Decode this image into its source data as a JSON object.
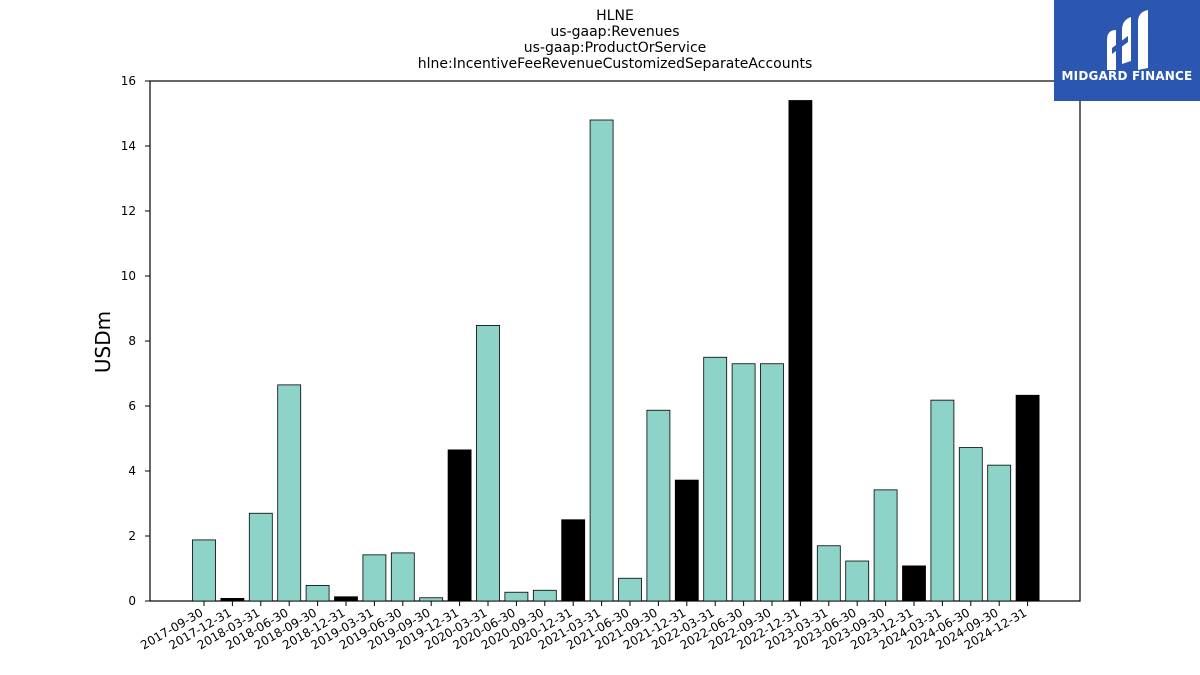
{
  "titles": [
    "HLNE",
    "us-gaap:Revenues",
    "us-gaap:ProductOrService",
    "hlne:IncentiveFeeRevenueCustomizedSeparateAccounts"
  ],
  "brand": {
    "name": "MIDGARD FINANCE",
    "background": "#2b57b0",
    "text_color": "#ffffff"
  },
  "chart_data": {
    "type": "bar",
    "title": "HLNE",
    "subtitles": [
      "us-gaap:Revenues",
      "us-gaap:ProductOrService",
      "hlne:IncentiveFeeRevenueCustomizedSeparateAccounts"
    ],
    "xlabel": "",
    "ylabel": "USDm",
    "ylim": [
      0,
      16
    ],
    "yticks": [
      0,
      2,
      4,
      6,
      8,
      10,
      12,
      14,
      16
    ],
    "grid": false,
    "colors": {
      "quarter": "#8dd3c7",
      "year_end": "#000000",
      "edge": "#000000"
    },
    "categories": [
      "2017-09-30",
      "2017-12-31",
      "2018-03-31",
      "2018-06-30",
      "2018-09-30",
      "2018-12-31",
      "2019-03-31",
      "2019-06-30",
      "2019-09-30",
      "2019-12-31",
      "2020-03-31",
      "2020-06-30",
      "2020-09-30",
      "2020-12-31",
      "2021-03-31",
      "2021-06-30",
      "2021-09-30",
      "2021-12-31",
      "2022-03-31",
      "2022-06-30",
      "2022-09-30",
      "2022-12-31",
      "2023-03-31",
      "2023-06-30",
      "2023-09-30",
      "2023-12-31",
      "2024-03-31",
      "2024-06-30",
      "2024-09-30",
      "2024-12-31"
    ],
    "values": [
      1.88,
      0.08,
      2.7,
      6.65,
      0.48,
      0.13,
      1.42,
      1.48,
      0.1,
      4.65,
      8.48,
      0.27,
      0.33,
      2.5,
      14.8,
      0.7,
      5.87,
      3.72,
      7.5,
      7.3,
      7.3,
      15.4,
      1.7,
      1.23,
      3.42,
      1.08,
      6.18,
      4.72,
      4.18,
      6.33
    ],
    "year_end": [
      false,
      true,
      false,
      false,
      false,
      true,
      false,
      false,
      false,
      true,
      false,
      false,
      false,
      true,
      false,
      false,
      false,
      true,
      false,
      false,
      false,
      true,
      false,
      false,
      false,
      true,
      false,
      false,
      false,
      true
    ]
  }
}
